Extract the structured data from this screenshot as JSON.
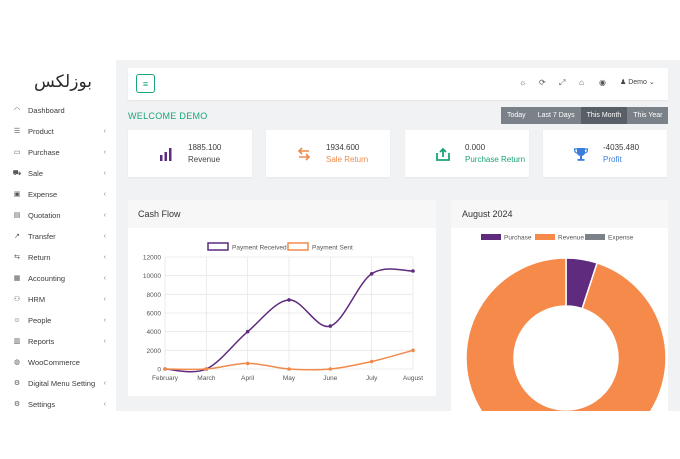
{
  "sidebar": {
    "logo": "بوزلكس",
    "items": [
      {
        "label": "Dashboard",
        "icon": "dashboard-icon",
        "glyph": "◠",
        "chevron": false
      },
      {
        "label": "Product",
        "icon": "list-icon",
        "glyph": "☰",
        "chevron": true
      },
      {
        "label": "Purchase",
        "icon": "card-icon",
        "glyph": "▭",
        "chevron": true
      },
      {
        "label": "Sale",
        "icon": "cart-icon",
        "glyph": "⛟",
        "chevron": true
      },
      {
        "label": "Expense",
        "icon": "wallet-icon",
        "glyph": "▣",
        "chevron": true
      },
      {
        "label": "Quotation",
        "icon": "document-icon",
        "glyph": "▤",
        "chevron": true
      },
      {
        "label": "Transfer",
        "icon": "transfer-icon",
        "glyph": "↗",
        "chevron": true
      },
      {
        "label": "Return",
        "icon": "return-icon",
        "glyph": "⇆",
        "chevron": true
      },
      {
        "label": "Accounting",
        "icon": "bank-icon",
        "glyph": "▦",
        "chevron": true
      },
      {
        "label": "HRM",
        "icon": "users-icon",
        "glyph": "⚇",
        "chevron": true
      },
      {
        "label": "People",
        "icon": "person-icon",
        "glyph": "☺",
        "chevron": true
      },
      {
        "label": "Reports",
        "icon": "report-icon",
        "glyph": "▥",
        "chevron": true
      },
      {
        "label": "WooCommerce",
        "icon": "globe-icon",
        "glyph": "◍",
        "chevron": false
      },
      {
        "label": "Digital Menu Setting",
        "icon": "gear-icon",
        "glyph": "⚙",
        "chevron": true
      },
      {
        "label": "Settings",
        "icon": "settings-icon",
        "glyph": "⚙",
        "chevron": true
      }
    ]
  },
  "topbar": {
    "menu_glyph": "≡",
    "icons": [
      {
        "name": "brightness-icon",
        "glyph": "☼"
      },
      {
        "name": "refresh-icon",
        "glyph": "⟳"
      },
      {
        "name": "fullscreen-icon",
        "glyph": "⤢"
      },
      {
        "name": "basket-icon",
        "glyph": "⌂"
      },
      {
        "name": "language-icon",
        "glyph": "◉"
      }
    ],
    "user": "Demo",
    "user_glyph": "♟"
  },
  "welcome": "WELCOME DEMO",
  "periods": [
    {
      "label": "Today",
      "active": false
    },
    {
      "label": "Last 7 Days",
      "active": false
    },
    {
      "label": "This Month",
      "active": true
    },
    {
      "label": "This Year",
      "active": false
    }
  ],
  "stats": [
    {
      "value": "1885.100",
      "label": "Revenue",
      "icon": "bar-chart-icon",
      "color": "#5e2b7e",
      "label_color": "#444444"
    },
    {
      "value": "1934.600",
      "label": "Sale Return",
      "icon": "return-arrow-icon",
      "color": "#f08a4b",
      "label_color": "#f08a4b"
    },
    {
      "value": "0.000",
      "label": "Purchase Return",
      "icon": "tray-icon",
      "color": "#1aa37a",
      "label_color": "#1aa37a"
    },
    {
      "value": "-4035.480",
      "label": "Profit",
      "icon": "trophy-icon",
      "color": "#3b7ddd",
      "label_color": "#3b7ddd"
    }
  ],
  "cashflow": {
    "title": "Cash Flow",
    "chart_data": {
      "type": "line",
      "categories": [
        "February",
        "March",
        "April",
        "May",
        "June",
        "July",
        "August"
      ],
      "series": [
        {
          "name": "Payment Received",
          "color": "#5e2b7e",
          "values": [
            0,
            0,
            4000,
            7400,
            4600,
            10200,
            10500
          ]
        },
        {
          "name": "Payment Sent",
          "color": "#f08a4b",
          "values": [
            0,
            0,
            600,
            0,
            0,
            800,
            2000
          ]
        }
      ],
      "ylim": [
        0,
        12000
      ],
      "yticks": [
        0,
        2000,
        4000,
        6000,
        8000,
        10000,
        12000
      ],
      "grid": true,
      "legend": "top"
    }
  },
  "august": {
    "title": "August 2024",
    "chart_data": {
      "type": "pie",
      "labels": [
        "Purchase",
        "Revenue",
        "Expense"
      ],
      "values": [
        100,
        1885.1,
        0
      ],
      "colors": [
        "#5e2b7e",
        "#f58a4b",
        "#7b8188"
      ],
      "legend": "top"
    }
  }
}
